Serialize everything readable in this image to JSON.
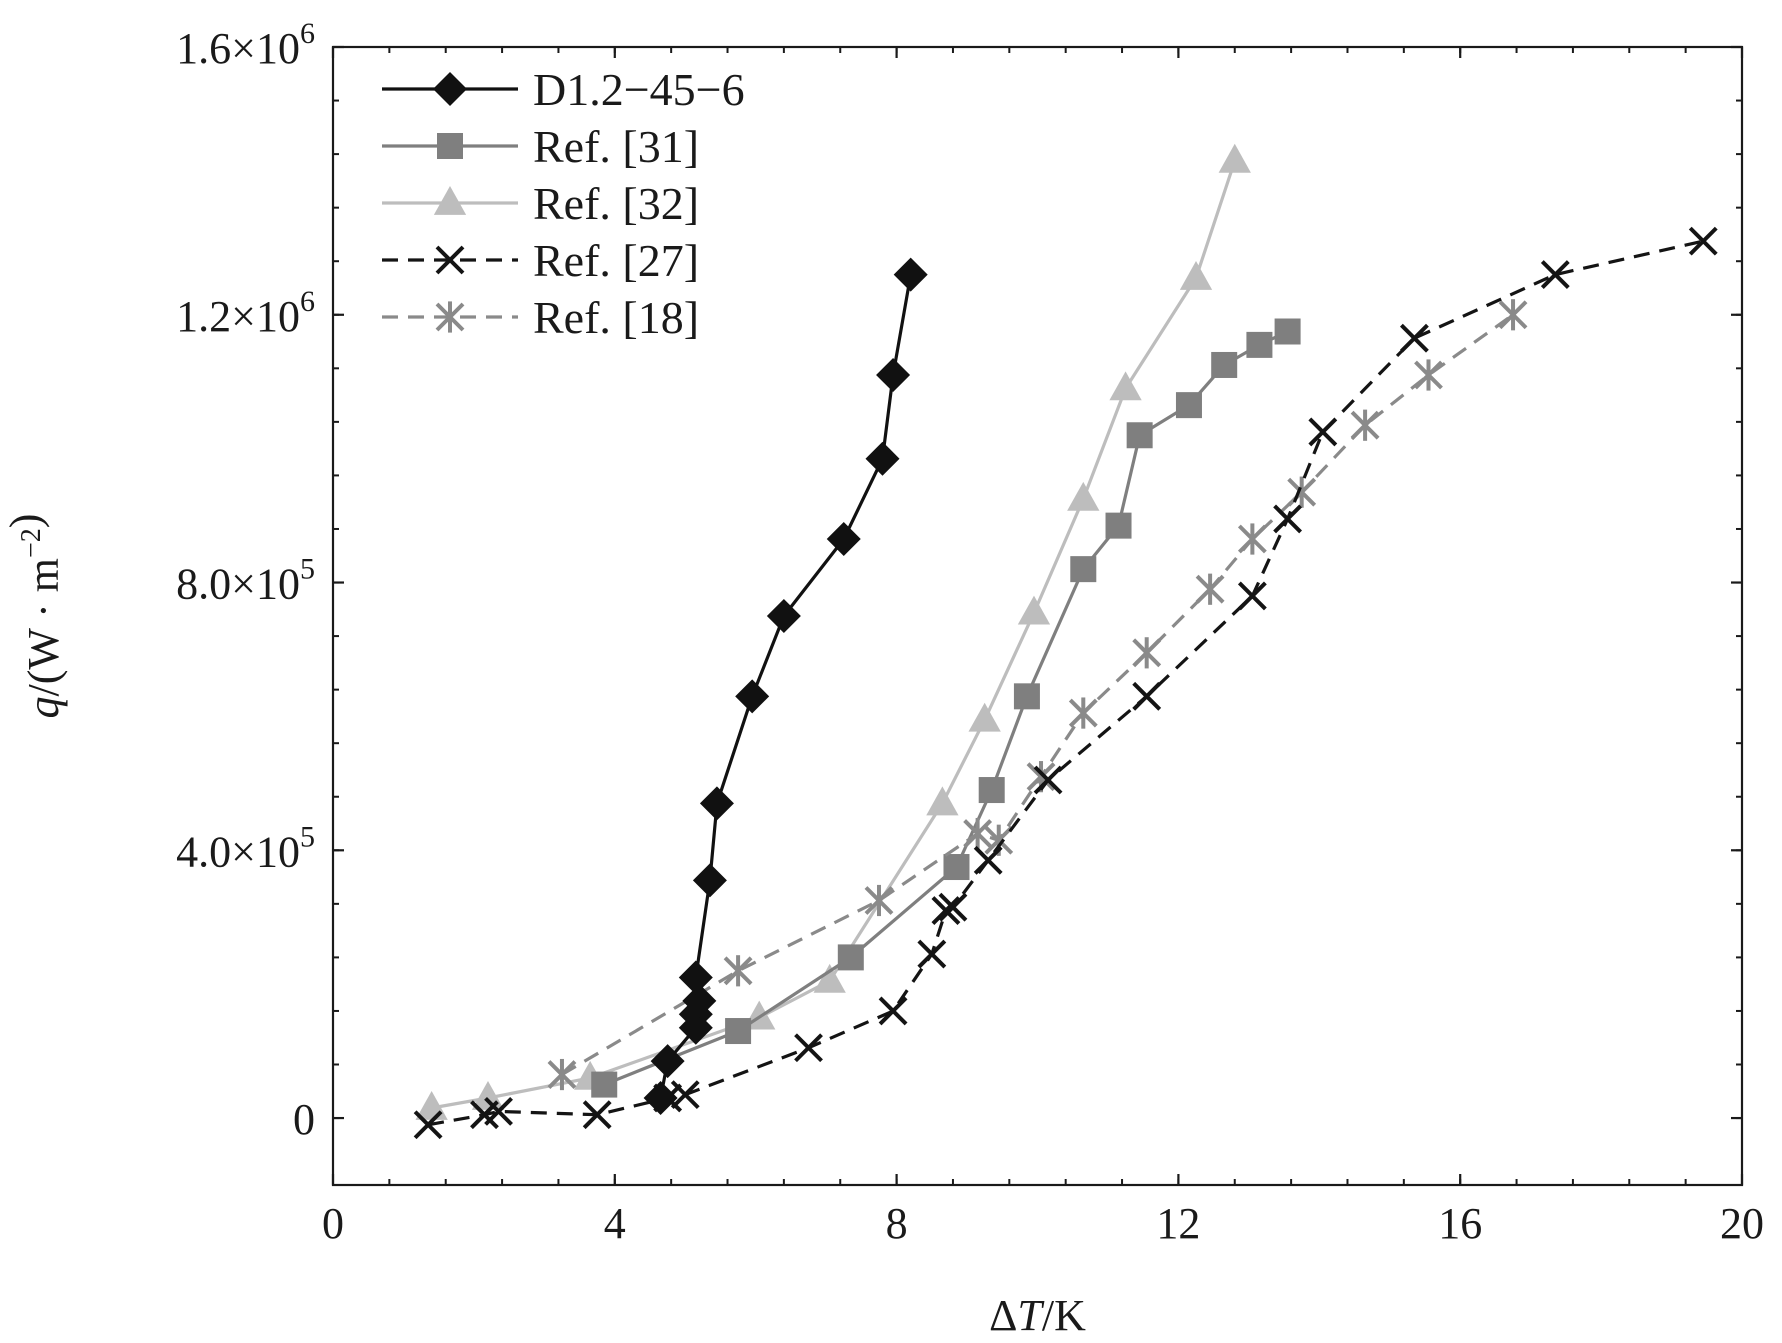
{
  "chart_data": {
    "type": "line",
    "title": "",
    "xlabel_parts": [
      {
        "text": "Δ",
        "italic": false
      },
      {
        "text": "T",
        "italic": true
      },
      {
        "text": "/K",
        "italic": false
      }
    ],
    "ylabel_parts": [
      {
        "text": "q",
        "italic": true,
        "sup": false
      },
      {
        "text": "/(W · m",
        "italic": false,
        "sup": false
      },
      {
        "text": "−2",
        "italic": false,
        "sup": true
      },
      {
        "text": ")",
        "italic": false,
        "sup": false
      }
    ],
    "xlim": [
      0,
      20
    ],
    "ylim": [
      -100000,
      1600000
    ],
    "x_ticks": [
      {
        "value": 0,
        "label": "0"
      },
      {
        "value": 4,
        "label": "4"
      },
      {
        "value": 8,
        "label": "8"
      },
      {
        "value": 12,
        "label": "12"
      },
      {
        "value": 16,
        "label": "16"
      },
      {
        "value": 20,
        "label": "20"
      }
    ],
    "x_minor_step": 0.8,
    "y_ticks": [
      {
        "value": 0,
        "mantissa": "0",
        "exp": ""
      },
      {
        "value": 400000,
        "mantissa": "4.0×10",
        "exp": "5"
      },
      {
        "value": 800000,
        "mantissa": "8.0×10",
        "exp": "5"
      },
      {
        "value": 1200000,
        "mantissa": "1.2×10",
        "exp": "6"
      },
      {
        "value": 1600000,
        "mantissa": "1.6×10",
        "exp": "6"
      }
    ],
    "y_minor_step": 80000,
    "grid": false,
    "legend_position": "top-left",
    "series": [
      {
        "name": "D1.2−45−6",
        "color": "#111111",
        "dash": "",
        "marker": "diamond",
        "x": [
          4.65,
          4.75,
          5.15,
          5.15,
          5.2,
          5.15,
          5.35,
          5.45,
          5.95,
          6.4,
          7.25,
          7.8,
          7.95,
          8.2
        ],
        "y": [
          30000,
          85000,
          135000,
          155000,
          175000,
          210000,
          355000,
          470000,
          630000,
          750000,
          865000,
          985000,
          1110000,
          1260000
        ]
      },
      {
        "name": "Ref. [31]",
        "color": "#7f7f7f",
        "dash": "",
        "marker": "square",
        "x": [
          3.85,
          5.75,
          7.35,
          8.85,
          9.35,
          9.85,
          10.65,
          11.15,
          11.45,
          12.15,
          12.65,
          13.15,
          13.55
        ],
        "y": [
          50000,
          130000,
          240000,
          375000,
          490000,
          630000,
          820000,
          885000,
          1020000,
          1065000,
          1125000,
          1155000,
          1175000
        ]
      },
      {
        "name": "Ref. [32]",
        "color": "#bdbdbd",
        "dash": "",
        "marker": "triangle",
        "x": [
          1.4,
          2.2,
          3.65,
          6.05,
          7.05,
          8.65,
          9.25,
          9.95,
          10.65,
          11.25,
          12.25,
          12.8
        ],
        "y": [
          15000,
          30000,
          60000,
          150000,
          205000,
          470000,
          595000,
          755000,
          925000,
          1090000,
          1255000,
          1430000
        ]
      },
      {
        "name": "Ref. [27]",
        "color": "#141414",
        "dash": "16 10",
        "marker": "x",
        "x": [
          1.35,
          2.15,
          2.35,
          3.75,
          4.75,
          5.0,
          6.75,
          7.95,
          8.5,
          8.7,
          8.8,
          9.3,
          10.15,
          11.55,
          13.05,
          13.55,
          14.05,
          15.35,
          17.35,
          19.45
        ],
        "y": [
          -10000,
          5000,
          10000,
          5000,
          30000,
          35000,
          105000,
          160000,
          245000,
          310000,
          315000,
          385000,
          505000,
          630000,
          780000,
          895000,
          1025000,
          1165000,
          1260000,
          1310000
        ]
      },
      {
        "name": "Ref. [18]",
        "color": "#8a8a8a",
        "dash": "16 10",
        "marker": "asterisk",
        "x": [
          3.25,
          5.75,
          7.75,
          9.15,
          9.45,
          10.05,
          10.65,
          11.55,
          12.45,
          13.05,
          13.75,
          14.65,
          15.55,
          16.75
        ],
        "y": [
          65000,
          220000,
          325000,
          425000,
          415000,
          510000,
          605000,
          695000,
          790000,
          865000,
          935000,
          1035000,
          1110000,
          1200000
        ]
      }
    ]
  }
}
